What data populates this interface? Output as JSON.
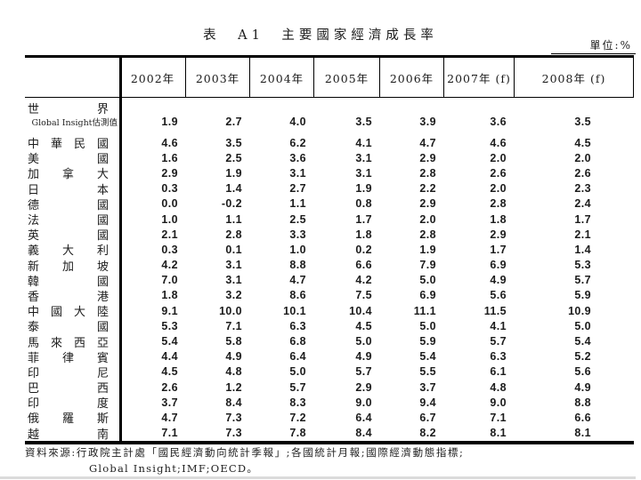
{
  "title": "表　A1　主要國家經濟成長率",
  "unit_label": "單位:%",
  "table": {
    "year_headers": [
      "2002年",
      "2003年",
      "2004年",
      "2005年",
      "2006年",
      "2007年 (f)",
      "2008年 (f)"
    ],
    "world": {
      "label": "世界",
      "sub_label": "Global Insight估測值",
      "values": [
        "1.9",
        "2.7",
        "4.0",
        "3.5",
        "3.9",
        "3.6",
        "3.5"
      ]
    },
    "rows": [
      {
        "label": "中華民國",
        "values": [
          "4.6",
          "3.5",
          "6.2",
          "4.1",
          "4.7",
          "4.6",
          "4.5"
        ]
      },
      {
        "label": "美國",
        "values": [
          "1.6",
          "2.5",
          "3.6",
          "3.1",
          "2.9",
          "2.0",
          "2.0"
        ]
      },
      {
        "label": "加拿大",
        "values": [
          "2.9",
          "1.9",
          "3.1",
          "3.1",
          "2.8",
          "2.6",
          "2.6"
        ]
      },
      {
        "label": "日本",
        "values": [
          "0.3",
          "1.4",
          "2.7",
          "1.9",
          "2.2",
          "2.0",
          "2.3"
        ]
      },
      {
        "label": "德國",
        "values": [
          "0.0",
          "-0.2",
          "1.1",
          "0.8",
          "2.9",
          "2.8",
          "2.4"
        ]
      },
      {
        "label": "法國",
        "values": [
          "1.0",
          "1.1",
          "2.5",
          "1.7",
          "2.0",
          "1.8",
          "1.7"
        ]
      },
      {
        "label": "英國",
        "values": [
          "2.1",
          "2.8",
          "3.3",
          "1.8",
          "2.8",
          "2.9",
          "2.1"
        ]
      },
      {
        "label": "義大利",
        "values": [
          "0.3",
          "0.1",
          "1.0",
          "0.2",
          "1.9",
          "1.7",
          "1.4"
        ]
      },
      {
        "label": "新加坡",
        "values": [
          "4.2",
          "3.1",
          "8.8",
          "6.6",
          "7.9",
          "6.9",
          "5.3"
        ]
      },
      {
        "label": "韓國",
        "values": [
          "7.0",
          "3.1",
          "4.7",
          "4.2",
          "5.0",
          "4.9",
          "5.7"
        ]
      },
      {
        "label": "香港",
        "values": [
          "1.8",
          "3.2",
          "8.6",
          "7.5",
          "6.9",
          "5.6",
          "5.9"
        ]
      },
      {
        "label": "中國大陸",
        "values": [
          "9.1",
          "10.0",
          "10.1",
          "10.4",
          "11.1",
          "11.5",
          "10.9"
        ]
      },
      {
        "label": "泰國",
        "values": [
          "5.3",
          "7.1",
          "6.3",
          "4.5",
          "5.0",
          "4.1",
          "5.0"
        ]
      },
      {
        "label": "馬來西亞",
        "values": [
          "5.4",
          "5.8",
          "6.8",
          "5.0",
          "5.9",
          "5.7",
          "5.4"
        ]
      },
      {
        "label": "菲律賓",
        "values": [
          "4.4",
          "4.9",
          "6.4",
          "4.9",
          "5.4",
          "6.3",
          "5.2"
        ]
      },
      {
        "label": "印尼",
        "values": [
          "4.5",
          "4.8",
          "5.0",
          "5.7",
          "5.5",
          "6.1",
          "5.6"
        ]
      },
      {
        "label": "巴西",
        "values": [
          "2.6",
          "1.2",
          "5.7",
          "2.9",
          "3.7",
          "4.8",
          "4.9"
        ]
      },
      {
        "label": "印度",
        "values": [
          "3.7",
          "8.4",
          "8.3",
          "9.0",
          "9.4",
          "9.0",
          "8.8"
        ]
      },
      {
        "label": "俄羅斯",
        "values": [
          "4.7",
          "7.3",
          "7.2",
          "6.4",
          "6.7",
          "7.1",
          "6.6"
        ]
      },
      {
        "label": "越南",
        "values": [
          "7.1",
          "7.3",
          "7.8",
          "8.4",
          "8.2",
          "8.1",
          "8.1"
        ]
      }
    ]
  },
  "footer": {
    "line1": "資料來源:行政院主計處「國民經濟動向統計季報」;各國統計月報;國際經濟動態指標;",
    "line2": "Global Insight;IMF;OECD。"
  }
}
